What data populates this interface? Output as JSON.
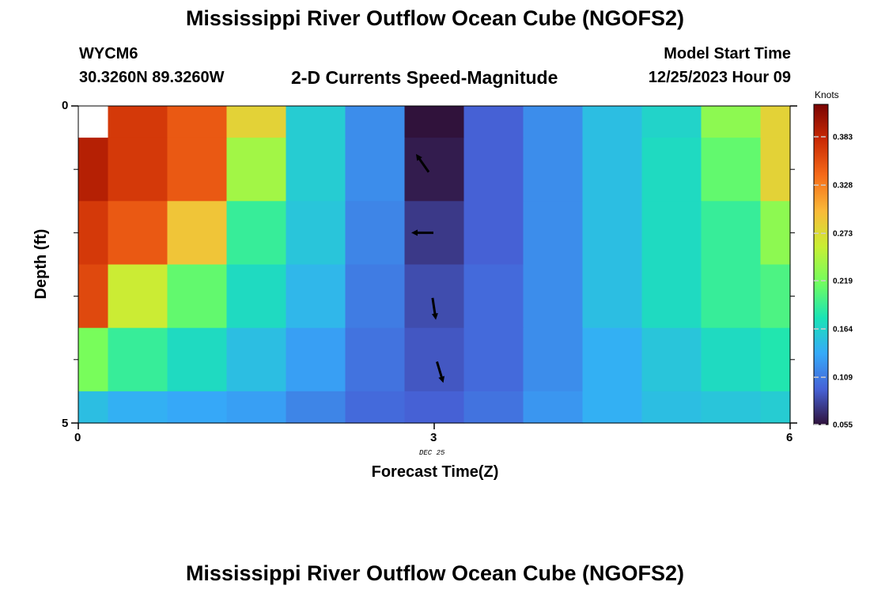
{
  "header": {
    "title_top": "Mississippi River Outflow Ocean Cube (NGOFS2)",
    "title_bottom": "Mississippi River Outflow Ocean Cube (NGOFS2)",
    "station_id": "WYCM6",
    "station_coords": "30.3260N  89.3260W",
    "plot_title": "2-D Currents Speed-Magnitude",
    "model_start_label": "Model Start Time",
    "model_start_value": "12/25/2023 Hour 09"
  },
  "chart_data": {
    "type": "heatmap",
    "xlabel": "Forecast Time(Z)",
    "ylabel": "Depth (ft)",
    "date_label": "DEC 25",
    "x_ticks": [
      "0",
      "3",
      "6"
    ],
    "y_ticks": [
      "0",
      "5"
    ],
    "xlim": [
      0,
      6
    ],
    "ylim": [
      0,
      5
    ],
    "x_edges": [
      0,
      0.25,
      0.75,
      1.25,
      1.75,
      2.25,
      2.75,
      3.25,
      3.75,
      4.25,
      4.75,
      5.25,
      5.75,
      6
    ],
    "y_edges": [
      0,
      0.5,
      1.5,
      2.5,
      3.5,
      4.5,
      5
    ],
    "values": [
      [
        null,
        0.37,
        0.35,
        0.28,
        0.16,
        0.12,
        0.055,
        0.095,
        0.12,
        0.15,
        0.165,
        0.23,
        0.28
      ],
      [
        0.39,
        0.37,
        0.35,
        0.24,
        0.16,
        0.12,
        0.06,
        0.095,
        0.12,
        0.15,
        0.17,
        0.21,
        0.28
      ],
      [
        0.37,
        0.35,
        0.29,
        0.19,
        0.155,
        0.115,
        0.075,
        0.095,
        0.12,
        0.15,
        0.17,
        0.19,
        0.23
      ],
      [
        0.36,
        0.26,
        0.21,
        0.17,
        0.145,
        0.11,
        0.085,
        0.1,
        0.12,
        0.15,
        0.17,
        0.19,
        0.2
      ],
      [
        0.22,
        0.19,
        0.17,
        0.15,
        0.13,
        0.105,
        0.09,
        0.1,
        0.12,
        0.14,
        0.155,
        0.17,
        0.18
      ],
      [
        0.15,
        0.14,
        0.135,
        0.13,
        0.115,
        0.1,
        0.095,
        0.105,
        0.125,
        0.14,
        0.15,
        0.155,
        0.16
      ]
    ],
    "arrows": [
      {
        "x": 2.9,
        "depth": 0.9,
        "dx": -0.7,
        "dy": -1
      },
      {
        "x": 2.9,
        "depth": 2.0,
        "dx": -1,
        "dy": 0
      },
      {
        "x": 3.0,
        "depth": 3.2,
        "dx": 0.15,
        "dy": 1
      },
      {
        "x": 3.05,
        "depth": 4.2,
        "dx": 0.3,
        "dy": 1
      }
    ],
    "colorbar": {
      "label": "Knots",
      "min": 0.055,
      "max": 0.42,
      "ticks": [
        "0.383",
        "0.328",
        "0.273",
        "0.219",
        "0.164",
        "0.109",
        "0.055"
      ],
      "tick_values": [
        0.383,
        0.328,
        0.273,
        0.219,
        0.164,
        0.109,
        0.055
      ],
      "colormap": [
        "#30123b",
        "#4662d7",
        "#36aaf9",
        "#1ae4b6",
        "#72fe5e",
        "#c8ef34",
        "#faba39",
        "#f66b19",
        "#ca2a04",
        "#7a0403"
      ]
    }
  }
}
